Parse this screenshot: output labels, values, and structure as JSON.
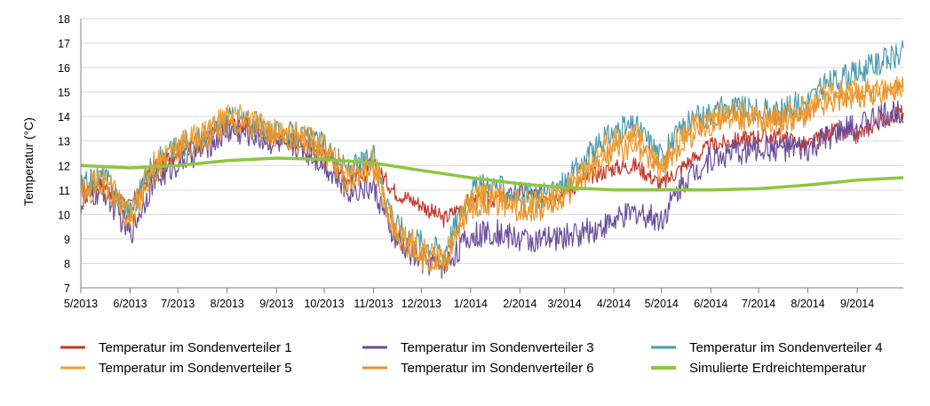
{
  "chart_data": {
    "type": "line",
    "ylabel": "Temperatur (°C)",
    "ylim": [
      7,
      18
    ],
    "yticks": [
      7,
      8,
      9,
      10,
      11,
      12,
      13,
      14,
      15,
      16,
      17,
      18
    ],
    "x_range": [
      "2013-05-01",
      "2014-09-30"
    ],
    "xtick_labels": [
      "5/2013",
      "6/2013",
      "7/2013",
      "8/2013",
      "9/2013",
      "10/2013",
      "11/2013",
      "12/2013",
      "1/2014",
      "2/2014",
      "3/2014",
      "4/2014",
      "5/2014",
      "6/2014",
      "7/2014",
      "8/2014",
      "9/2014"
    ],
    "grid": "horizontal",
    "legend_position": "bottom",
    "series": [
      {
        "name": "Temperatur im Sondenverteiler 1",
        "color": "#c0392b",
        "x": [
          "2013-05-01",
          "2013-05-15",
          "2013-06-01",
          "2013-06-15",
          "2013-07-01",
          "2013-07-15",
          "2013-08-01",
          "2013-08-15",
          "2013-09-01",
          "2013-09-15",
          "2013-10-01",
          "2013-10-15",
          "2013-11-01",
          "2013-11-15",
          "2013-12-01",
          "2013-12-15",
          "2014-01-01",
          "2014-01-15",
          "2014-02-01",
          "2014-02-15",
          "2014-03-01",
          "2014-03-15",
          "2014-04-01",
          "2014-04-15",
          "2014-05-01",
          "2014-05-15",
          "2014-06-01",
          "2014-06-15",
          "2014-07-01",
          "2014-07-15",
          "2014-08-01",
          "2014-08-15",
          "2014-09-01",
          "2014-09-15",
          "2014-09-30"
        ],
        "values": [
          11.0,
          11.2,
          10.3,
          11.8,
          12.6,
          13.0,
          13.7,
          13.6,
          13.1,
          13.0,
          12.6,
          11.5,
          12.0,
          10.9,
          10.4,
          9.8,
          10.6,
          10.6,
          10.9,
          10.8,
          10.9,
          11.5,
          11.9,
          12.0,
          11.2,
          12.0,
          12.8,
          13.0,
          13.2,
          13.2,
          12.8,
          13.4,
          13.2,
          13.8,
          14.2
        ]
      },
      {
        "name": "Temperatur im Sondenverteiler 3",
        "color": "#6a4c9c",
        "x": [
          "2013-05-01",
          "2013-05-15",
          "2013-06-01",
          "2013-06-15",
          "2013-07-01",
          "2013-07-15",
          "2013-08-01",
          "2013-08-15",
          "2013-09-01",
          "2013-09-15",
          "2013-10-01",
          "2013-10-15",
          "2013-11-01",
          "2013-11-15",
          "2013-12-01",
          "2013-12-15",
          "2014-01-01",
          "2014-01-15",
          "2014-02-01",
          "2014-02-15",
          "2014-03-01",
          "2014-03-15",
          "2014-04-01",
          "2014-04-15",
          "2014-05-01",
          "2014-05-15",
          "2014-06-01",
          "2014-06-15",
          "2014-07-01",
          "2014-07-15",
          "2014-08-01",
          "2014-08-15",
          "2014-09-01",
          "2014-09-15",
          "2014-09-30"
        ],
        "values": [
          10.4,
          11.0,
          9.2,
          11.3,
          12.1,
          12.6,
          13.4,
          13.3,
          12.9,
          12.8,
          12.1,
          11.0,
          11.1,
          8.9,
          8.1,
          7.9,
          9.1,
          9.3,
          9.0,
          8.9,
          9.1,
          9.3,
          9.7,
          10.1,
          9.8,
          11.4,
          12.3,
          12.5,
          12.7,
          12.7,
          12.6,
          13.2,
          13.6,
          14.0,
          14.3
        ]
      },
      {
        "name": "Temperatur im Sondenverteiler 4",
        "color": "#4a9ab0",
        "x": [
          "2013-05-01",
          "2013-05-15",
          "2013-06-01",
          "2013-06-15",
          "2013-07-01",
          "2013-07-15",
          "2013-08-01",
          "2013-08-15",
          "2013-09-01",
          "2013-09-15",
          "2013-10-01",
          "2013-10-15",
          "2013-11-01",
          "2013-11-15",
          "2013-12-01",
          "2013-12-15",
          "2014-01-01",
          "2014-01-15",
          "2014-02-01",
          "2014-02-15",
          "2014-03-01",
          "2014-03-15",
          "2014-04-01",
          "2014-04-15",
          "2014-05-01",
          "2014-05-15",
          "2014-06-01",
          "2014-06-15",
          "2014-07-01",
          "2014-07-15",
          "2014-08-01",
          "2014-08-15",
          "2014-09-01",
          "2014-09-15",
          "2014-09-30"
        ],
        "values": [
          11.1,
          11.6,
          10.1,
          12.0,
          12.8,
          13.1,
          13.9,
          13.8,
          13.3,
          13.2,
          12.8,
          11.8,
          12.3,
          9.6,
          8.9,
          8.5,
          11.0,
          11.2,
          10.8,
          10.7,
          11.3,
          12.3,
          13.4,
          13.6,
          12.4,
          13.6,
          14.2,
          14.4,
          14.2,
          14.2,
          14.7,
          15.4,
          15.8,
          16.2,
          16.6
        ]
      },
      {
        "name": "Temperatur im Sondenverteiler 5",
        "color": "#f0a030",
        "x": [
          "2013-05-01",
          "2013-05-15",
          "2013-06-01",
          "2013-06-15",
          "2013-07-01",
          "2013-07-15",
          "2013-08-01",
          "2013-08-15",
          "2013-09-01",
          "2013-09-15",
          "2013-10-01",
          "2013-10-15",
          "2013-11-01",
          "2013-11-15",
          "2013-12-01",
          "2013-12-15",
          "2014-01-01",
          "2014-01-15",
          "2014-02-01",
          "2014-02-15",
          "2014-03-01",
          "2014-03-15",
          "2014-04-01",
          "2014-04-15",
          "2014-05-01",
          "2014-05-15",
          "2014-06-01",
          "2014-06-15",
          "2014-07-01",
          "2014-07-15",
          "2014-08-01",
          "2014-08-15",
          "2014-09-01",
          "2014-09-15",
          "2014-09-30"
        ],
        "values": [
          11.0,
          11.6,
          10.0,
          12.1,
          12.9,
          13.3,
          14.1,
          13.9,
          13.4,
          13.3,
          12.8,
          11.7,
          12.2,
          9.4,
          8.6,
          8.2,
          10.7,
          10.9,
          10.5,
          10.5,
          11.0,
          12.0,
          13.1,
          13.3,
          12.1,
          13.4,
          14.0,
          14.2,
          14.0,
          14.0,
          14.4,
          15.0,
          15.0,
          15.1,
          15.2
        ]
      },
      {
        "name": "Temperatur im Sondenverteiler 6",
        "color": "#e8922a",
        "x": [
          "2013-05-01",
          "2013-05-15",
          "2013-06-01",
          "2013-06-15",
          "2013-07-01",
          "2013-07-15",
          "2013-08-01",
          "2013-08-15",
          "2013-09-01",
          "2013-09-15",
          "2013-10-01",
          "2013-10-15",
          "2013-11-01",
          "2013-11-15",
          "2013-12-01",
          "2013-12-15",
          "2014-01-01",
          "2014-01-15",
          "2014-02-01",
          "2014-02-15",
          "2014-03-01",
          "2014-03-15",
          "2014-04-01",
          "2014-04-15",
          "2014-05-01",
          "2014-05-15",
          "2014-06-01",
          "2014-06-15",
          "2014-07-01",
          "2014-07-15",
          "2014-08-01",
          "2014-08-15",
          "2014-09-01",
          "2014-09-15",
          "2014-09-30"
        ],
        "values": [
          10.7,
          11.2,
          9.6,
          11.7,
          12.5,
          12.9,
          13.7,
          13.6,
          13.1,
          13.0,
          12.4,
          11.3,
          11.8,
          9.1,
          8.2,
          7.9,
          10.3,
          10.5,
          10.2,
          10.2,
          10.7,
          11.6,
          12.6,
          12.8,
          11.7,
          13.0,
          13.7,
          13.9,
          13.8,
          13.8,
          14.1,
          14.6,
          14.8,
          14.9,
          15.1
        ]
      },
      {
        "name": "Simulierte Erdreichtemperatur",
        "color": "#8dc63f",
        "x": [
          "2013-05-01",
          "2013-06-01",
          "2013-07-01",
          "2013-08-01",
          "2013-09-01",
          "2013-10-01",
          "2013-11-01",
          "2013-12-01",
          "2014-01-01",
          "2014-02-01",
          "2014-03-01",
          "2014-04-01",
          "2014-05-01",
          "2014-06-01",
          "2014-07-01",
          "2014-08-01",
          "2014-09-01",
          "2014-09-30"
        ],
        "values": [
          12.0,
          11.9,
          12.0,
          12.2,
          12.3,
          12.25,
          12.1,
          11.8,
          11.5,
          11.25,
          11.1,
          11.0,
          11.0,
          11.0,
          11.05,
          11.2,
          11.4,
          11.5
        ]
      }
    ]
  }
}
